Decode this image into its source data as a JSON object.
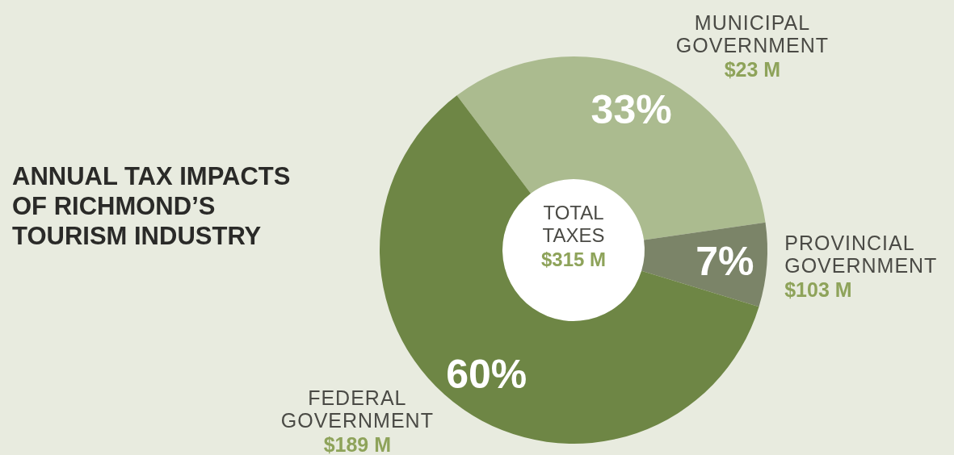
{
  "chart_data": {
    "type": "donut",
    "title": "ANNUAL TAX IMPACTS OF RICHMOND’S TOURISM INDUSTRY",
    "categories": [
      "MUNICIPAL GOVERNMENT",
      "PROVINCIAL GOVERNMENT",
      "FEDERAL GOVERNMENT"
    ],
    "values": [
      33,
      7,
      60
    ],
    "value_labels": [
      "33%",
      "7%",
      "60%"
    ],
    "colors": [
      "#abbb8f",
      "#7b8468",
      "#6e8645"
    ],
    "annotations": [
      "$23 M",
      "$103 M",
      "$189 M",
      "TOTAL TAXES",
      "$315 M"
    ],
    "legend": false
  }
}
